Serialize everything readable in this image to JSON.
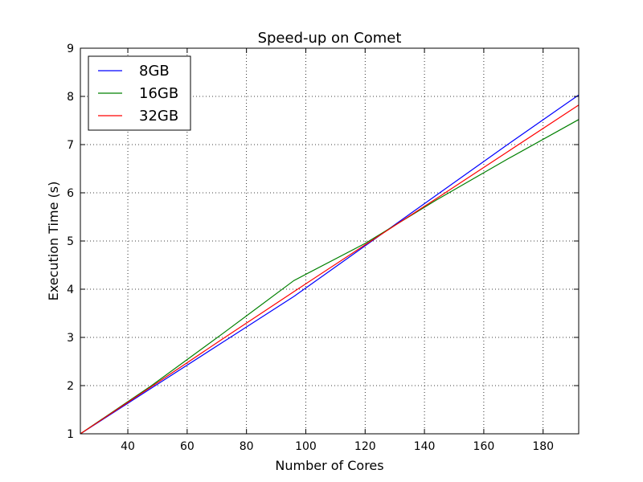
{
  "chart_data": {
    "type": "line",
    "title": "Speed-up on Comet",
    "xlabel": "Number of Cores",
    "ylabel": "Execution Time (s)",
    "xlim": [
      24,
      192
    ],
    "ylim": [
      1,
      9
    ],
    "xticks": [
      40,
      60,
      80,
      100,
      120,
      140,
      160,
      180
    ],
    "yticks": [
      1,
      2,
      3,
      4,
      5,
      6,
      7,
      8,
      9
    ],
    "grid": true,
    "legend_position": "top-left",
    "series": [
      {
        "name": "8GB",
        "color": "#0000ff",
        "x": [
          24,
          48,
          72,
          96,
          120,
          144,
          168,
          192
        ],
        "y": [
          1.0,
          1.95,
          2.9,
          3.85,
          4.9,
          5.95,
          7.0,
          8.03
        ]
      },
      {
        "name": "16GB",
        "color": "#008000",
        "x": [
          24,
          48,
          72,
          96,
          120,
          144,
          168,
          192
        ],
        "y": [
          1.0,
          2.0,
          3.08,
          4.18,
          4.95,
          5.85,
          6.7,
          7.52
        ]
      },
      {
        "name": "32GB",
        "color": "#ff0000",
        "x": [
          24,
          48,
          72,
          96,
          120,
          144,
          168,
          192
        ],
        "y": [
          1.0,
          1.98,
          2.97,
          3.95,
          4.92,
          5.88,
          6.85,
          7.82
        ]
      }
    ]
  }
}
